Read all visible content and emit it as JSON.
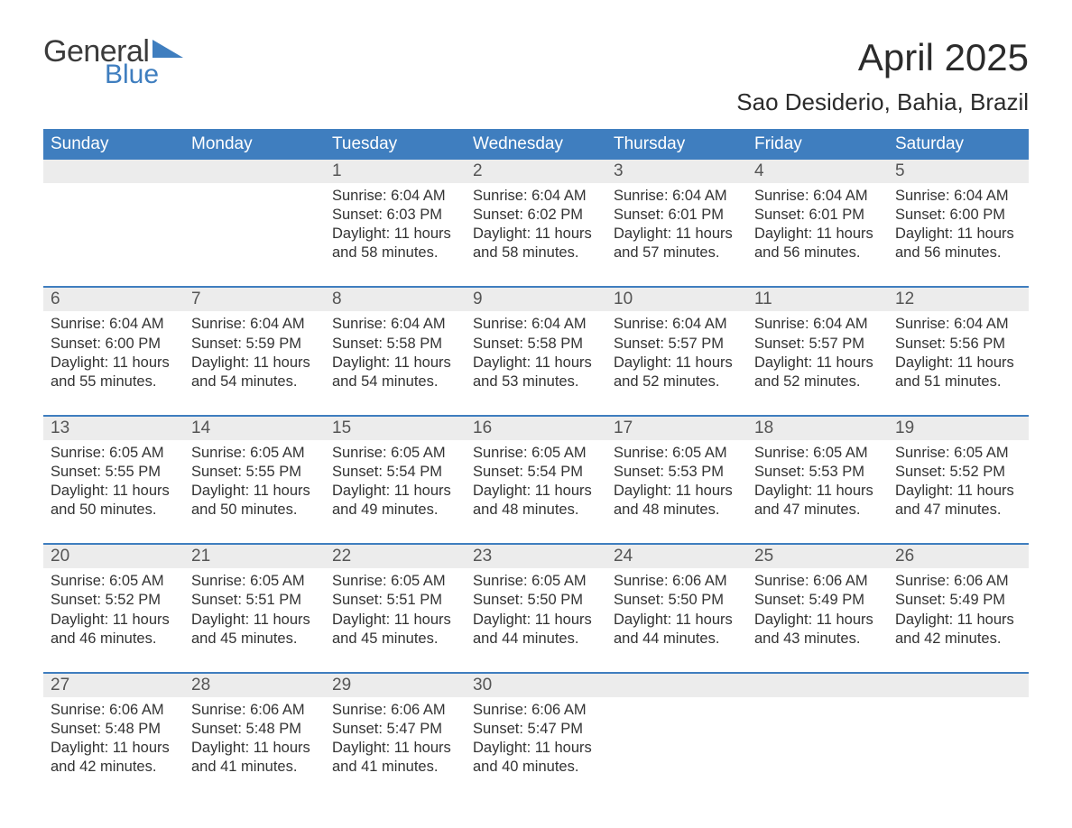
{
  "brand": {
    "word1": "General",
    "word2": "Blue",
    "word1_color": "#3b3b3b",
    "word2_color": "#3f7ebf",
    "triangle_color": "#3f7ebf"
  },
  "title": "April 2025",
  "location": "Sao Desiderio, Bahia, Brazil",
  "colors": {
    "header_bg": "#3f7ebf",
    "header_text": "#ffffff",
    "daynum_bg": "#ececec",
    "rule": "#3f7ebf",
    "body_text": "#333333",
    "page_bg": "#ffffff"
  },
  "font": {
    "title_size_pt": 32,
    "location_size_pt": 20,
    "weekday_size_pt": 14,
    "daynum_size_pt": 14,
    "body_size_pt": 12
  },
  "weekdays": [
    "Sunday",
    "Monday",
    "Tuesday",
    "Wednesday",
    "Thursday",
    "Friday",
    "Saturday"
  ],
  "weeks": [
    {
      "days": [
        {
          "num": "",
          "lines": [
            "",
            "",
            "",
            ""
          ]
        },
        {
          "num": "",
          "lines": [
            "",
            "",
            "",
            ""
          ]
        },
        {
          "num": "1",
          "lines": [
            "Sunrise: 6:04 AM",
            "Sunset: 6:03 PM",
            "Daylight: 11 hours",
            "and 58 minutes."
          ]
        },
        {
          "num": "2",
          "lines": [
            "Sunrise: 6:04 AM",
            "Sunset: 6:02 PM",
            "Daylight: 11 hours",
            "and 58 minutes."
          ]
        },
        {
          "num": "3",
          "lines": [
            "Sunrise: 6:04 AM",
            "Sunset: 6:01 PM",
            "Daylight: 11 hours",
            "and 57 minutes."
          ]
        },
        {
          "num": "4",
          "lines": [
            "Sunrise: 6:04 AM",
            "Sunset: 6:01 PM",
            "Daylight: 11 hours",
            "and 56 minutes."
          ]
        },
        {
          "num": "5",
          "lines": [
            "Sunrise: 6:04 AM",
            "Sunset: 6:00 PM",
            "Daylight: 11 hours",
            "and 56 minutes."
          ]
        }
      ]
    },
    {
      "days": [
        {
          "num": "6",
          "lines": [
            "Sunrise: 6:04 AM",
            "Sunset: 6:00 PM",
            "Daylight: 11 hours",
            "and 55 minutes."
          ]
        },
        {
          "num": "7",
          "lines": [
            "Sunrise: 6:04 AM",
            "Sunset: 5:59 PM",
            "Daylight: 11 hours",
            "and 54 minutes."
          ]
        },
        {
          "num": "8",
          "lines": [
            "Sunrise: 6:04 AM",
            "Sunset: 5:58 PM",
            "Daylight: 11 hours",
            "and 54 minutes."
          ]
        },
        {
          "num": "9",
          "lines": [
            "Sunrise: 6:04 AM",
            "Sunset: 5:58 PM",
            "Daylight: 11 hours",
            "and 53 minutes."
          ]
        },
        {
          "num": "10",
          "lines": [
            "Sunrise: 6:04 AM",
            "Sunset: 5:57 PM",
            "Daylight: 11 hours",
            "and 52 minutes."
          ]
        },
        {
          "num": "11",
          "lines": [
            "Sunrise: 6:04 AM",
            "Sunset: 5:57 PM",
            "Daylight: 11 hours",
            "and 52 minutes."
          ]
        },
        {
          "num": "12",
          "lines": [
            "Sunrise: 6:04 AM",
            "Sunset: 5:56 PM",
            "Daylight: 11 hours",
            "and 51 minutes."
          ]
        }
      ]
    },
    {
      "days": [
        {
          "num": "13",
          "lines": [
            "Sunrise: 6:05 AM",
            "Sunset: 5:55 PM",
            "Daylight: 11 hours",
            "and 50 minutes."
          ]
        },
        {
          "num": "14",
          "lines": [
            "Sunrise: 6:05 AM",
            "Sunset: 5:55 PM",
            "Daylight: 11 hours",
            "and 50 minutes."
          ]
        },
        {
          "num": "15",
          "lines": [
            "Sunrise: 6:05 AM",
            "Sunset: 5:54 PM",
            "Daylight: 11 hours",
            "and 49 minutes."
          ]
        },
        {
          "num": "16",
          "lines": [
            "Sunrise: 6:05 AM",
            "Sunset: 5:54 PM",
            "Daylight: 11 hours",
            "and 48 minutes."
          ]
        },
        {
          "num": "17",
          "lines": [
            "Sunrise: 6:05 AM",
            "Sunset: 5:53 PM",
            "Daylight: 11 hours",
            "and 48 minutes."
          ]
        },
        {
          "num": "18",
          "lines": [
            "Sunrise: 6:05 AM",
            "Sunset: 5:53 PM",
            "Daylight: 11 hours",
            "and 47 minutes."
          ]
        },
        {
          "num": "19",
          "lines": [
            "Sunrise: 6:05 AM",
            "Sunset: 5:52 PM",
            "Daylight: 11 hours",
            "and 47 minutes."
          ]
        }
      ]
    },
    {
      "days": [
        {
          "num": "20",
          "lines": [
            "Sunrise: 6:05 AM",
            "Sunset: 5:52 PM",
            "Daylight: 11 hours",
            "and 46 minutes."
          ]
        },
        {
          "num": "21",
          "lines": [
            "Sunrise: 6:05 AM",
            "Sunset: 5:51 PM",
            "Daylight: 11 hours",
            "and 45 minutes."
          ]
        },
        {
          "num": "22",
          "lines": [
            "Sunrise: 6:05 AM",
            "Sunset: 5:51 PM",
            "Daylight: 11 hours",
            "and 45 minutes."
          ]
        },
        {
          "num": "23",
          "lines": [
            "Sunrise: 6:05 AM",
            "Sunset: 5:50 PM",
            "Daylight: 11 hours",
            "and 44 minutes."
          ]
        },
        {
          "num": "24",
          "lines": [
            "Sunrise: 6:06 AM",
            "Sunset: 5:50 PM",
            "Daylight: 11 hours",
            "and 44 minutes."
          ]
        },
        {
          "num": "25",
          "lines": [
            "Sunrise: 6:06 AM",
            "Sunset: 5:49 PM",
            "Daylight: 11 hours",
            "and 43 minutes."
          ]
        },
        {
          "num": "26",
          "lines": [
            "Sunrise: 6:06 AM",
            "Sunset: 5:49 PM",
            "Daylight: 11 hours",
            "and 42 minutes."
          ]
        }
      ]
    },
    {
      "days": [
        {
          "num": "27",
          "lines": [
            "Sunrise: 6:06 AM",
            "Sunset: 5:48 PM",
            "Daylight: 11 hours",
            "and 42 minutes."
          ]
        },
        {
          "num": "28",
          "lines": [
            "Sunrise: 6:06 AM",
            "Sunset: 5:48 PM",
            "Daylight: 11 hours",
            "and 41 minutes."
          ]
        },
        {
          "num": "29",
          "lines": [
            "Sunrise: 6:06 AM",
            "Sunset: 5:47 PM",
            "Daylight: 11 hours",
            "and 41 minutes."
          ]
        },
        {
          "num": "30",
          "lines": [
            "Sunrise: 6:06 AM",
            "Sunset: 5:47 PM",
            "Daylight: 11 hours",
            "and 40 minutes."
          ]
        },
        {
          "num": "",
          "lines": [
            "",
            "",
            "",
            ""
          ]
        },
        {
          "num": "",
          "lines": [
            "",
            "",
            "",
            ""
          ]
        },
        {
          "num": "",
          "lines": [
            "",
            "",
            "",
            ""
          ]
        }
      ]
    }
  ]
}
